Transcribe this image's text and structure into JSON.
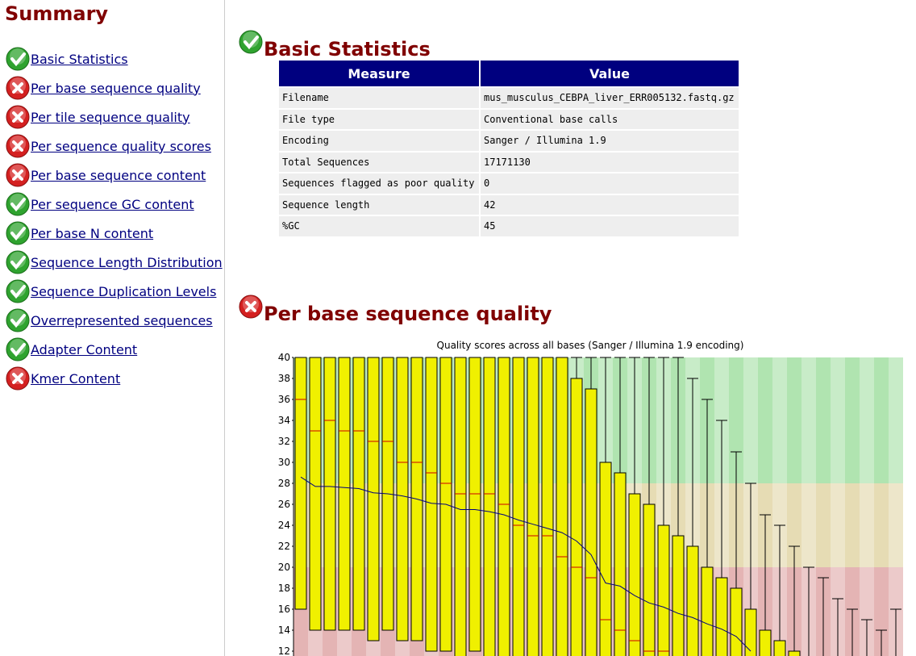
{
  "summary": {
    "title": "Summary",
    "items": [
      {
        "label": "Basic Statistics",
        "status": "pass"
      },
      {
        "label": "Per base sequence quality",
        "status": "fail"
      },
      {
        "label": "Per tile sequence quality",
        "status": "fail"
      },
      {
        "label": "Per sequence quality scores",
        "status": "fail"
      },
      {
        "label": "Per base sequence content",
        "status": "fail"
      },
      {
        "label": "Per sequence GC content",
        "status": "pass"
      },
      {
        "label": "Per base N content",
        "status": "pass"
      },
      {
        "label": "Sequence Length Distribution",
        "status": "pass"
      },
      {
        "label": "Sequence Duplication Levels",
        "status": "pass"
      },
      {
        "label": "Overrepresented sequences",
        "status": "pass"
      },
      {
        "label": "Adapter Content",
        "status": "pass"
      },
      {
        "label": "Kmer Content",
        "status": "fail"
      }
    ]
  },
  "modules": [
    {
      "title": "Basic Statistics",
      "status": "pass",
      "table": {
        "header": [
          "Measure",
          "Value"
        ],
        "rows": [
          [
            "Filename",
            "mus_musculus_CEBPA_liver_ERR005132.fastq.gz"
          ],
          [
            "File type",
            "Conventional base calls"
          ],
          [
            "Encoding",
            "Sanger / Illumina 1.9"
          ],
          [
            "Total Sequences",
            "17171130"
          ],
          [
            "Sequences flagged as poor quality",
            "0"
          ],
          [
            "Sequence length",
            "42"
          ],
          [
            "%GC",
            "45"
          ]
        ]
      }
    },
    {
      "title": "Per base sequence quality",
      "status": "fail",
      "chart_data": {
        "type": "boxplot",
        "title": "Quality scores across all bases (Sanger / Illumina 1.9 encoding)",
        "ylim": [
          12,
          40
        ],
        "yticks": [
          12,
          14,
          16,
          18,
          20,
          22,
          24,
          26,
          28,
          30,
          32,
          34,
          36,
          38,
          40
        ],
        "bands": [
          {
            "from": 28,
            "to": 40,
            "color": "#b0e4b0"
          },
          {
            "from": 20,
            "to": 28,
            "color": "#e6dcb4"
          },
          {
            "from": 12,
            "to": 20,
            "color": "#e4b4b4"
          }
        ],
        "box_color": "#f0f000",
        "median_color": "#cc0000",
        "mean_color": "#000080",
        "whisker_high": [
          40,
          40,
          40,
          40,
          40,
          40,
          40,
          40,
          40,
          40,
          40,
          40,
          40,
          40,
          40,
          40,
          40,
          40,
          40,
          40,
          40,
          40,
          40,
          40,
          40,
          40,
          40,
          38,
          36,
          34,
          31,
          28,
          25,
          24,
          22,
          20,
          19,
          17,
          16,
          15,
          14,
          16
        ],
        "upper_quartile": [
          40,
          40,
          40,
          40,
          40,
          40,
          40,
          40,
          40,
          40,
          40,
          40,
          40,
          40,
          40,
          40,
          40,
          40,
          40,
          38,
          37,
          30,
          29,
          27,
          26,
          24,
          23,
          22,
          20,
          19,
          18,
          16,
          14,
          13,
          12,
          null,
          null,
          null,
          null,
          null,
          null,
          null
        ],
        "median": [
          36,
          33,
          34,
          33,
          33,
          32,
          32,
          30,
          30,
          29,
          28,
          27,
          27,
          27,
          26,
          24,
          23,
          23,
          21,
          20,
          19,
          15,
          14,
          13,
          12,
          12,
          null,
          null,
          null,
          null,
          null,
          null,
          null,
          null,
          null,
          null,
          null,
          null,
          null,
          null,
          null,
          null
        ],
        "lower_quartile": [
          16,
          14,
          14,
          14,
          14,
          13,
          14,
          13,
          13,
          12,
          12,
          null,
          12,
          null,
          null,
          null,
          null,
          null,
          null,
          null,
          null,
          null,
          null,
          null,
          null,
          null,
          null,
          null,
          null,
          null,
          null,
          null,
          null,
          null,
          null,
          null,
          null,
          null,
          null,
          null,
          null,
          null
        ],
        "mean": [
          28.6,
          27.7,
          27.7,
          27.6,
          27.5,
          27.1,
          27.0,
          26.8,
          26.5,
          26.1,
          26.0,
          25.5,
          25.5,
          25.3,
          25.0,
          24.5,
          24.1,
          23.7,
          23.3,
          22.5,
          21.2,
          18.5,
          18.2,
          17.3,
          16.6,
          16.2,
          15.6,
          15.2,
          14.6,
          14.1,
          13.4,
          12.0,
          null,
          null,
          null,
          null,
          null,
          null,
          null,
          null,
          null,
          null
        ]
      }
    }
  ]
}
